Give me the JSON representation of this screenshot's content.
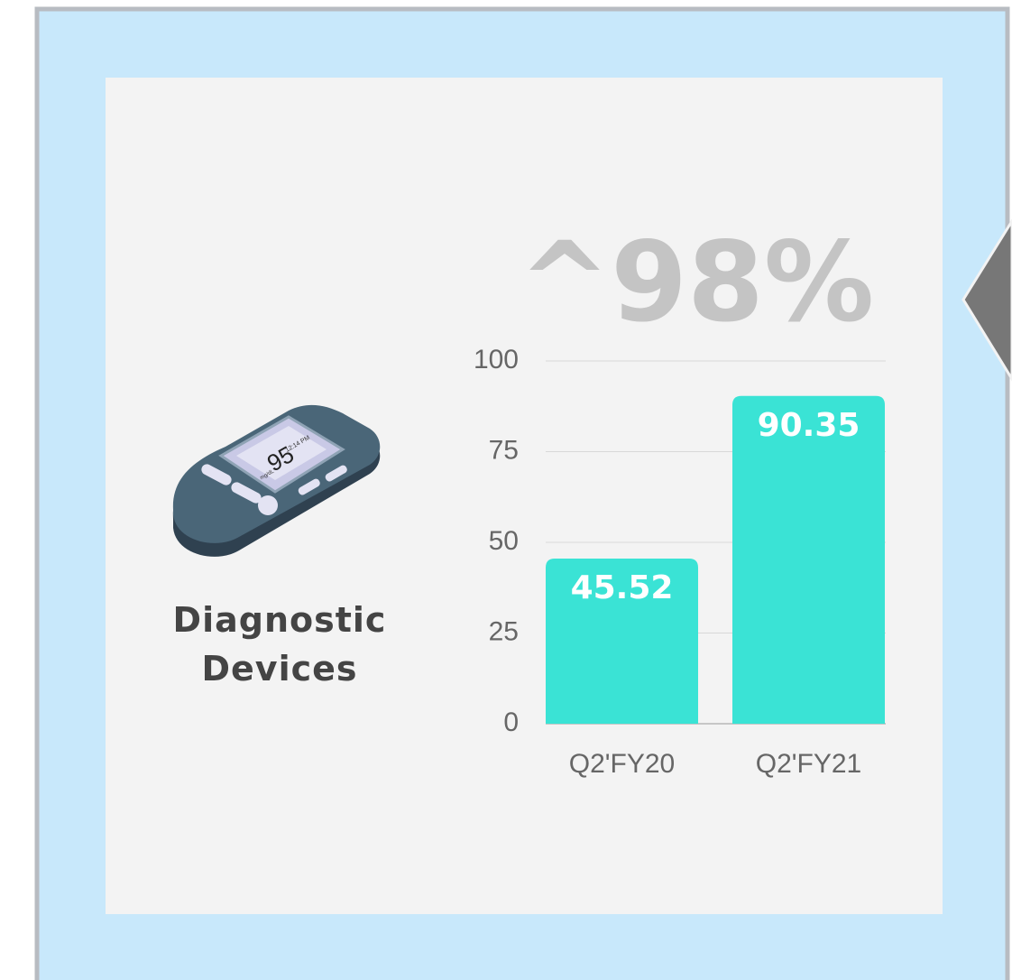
{
  "chart_data": {
    "type": "bar",
    "annotation": "^98%",
    "categories": [
      "Q2'FY20",
      "Q2'FY21"
    ],
    "values": [
      45.52,
      90.35
    ],
    "color": "#3ae3d5",
    "ylim": [
      0,
      100
    ],
    "yticks": [
      0,
      25,
      50,
      75,
      100
    ],
    "grid": true
  },
  "label": "Diagnostic Devices",
  "icon": {
    "reading": "95",
    "time": "12:14 PM",
    "unit": "mg/dL"
  }
}
